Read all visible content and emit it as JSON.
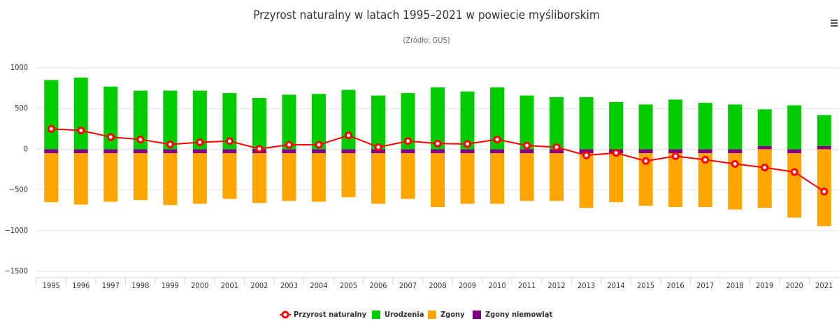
{
  "chart_data": {
    "type": "bar",
    "title": "Przyrost naturalny w latach 1995–2021 w powiecie myśliborskim",
    "subtitle": "(Źródło: GUS)",
    "categories": [
      "1995",
      "1996",
      "1997",
      "1998",
      "1999",
      "2000",
      "2001",
      "2002",
      "2003",
      "2004",
      "2005",
      "2006",
      "2007",
      "2008",
      "2009",
      "2010",
      "2011",
      "2012",
      "2013",
      "2014",
      "2015",
      "2016",
      "2017",
      "2018",
      "2019",
      "2020",
      "2021"
    ],
    "series": [
      {
        "name": "Przyrost naturalny",
        "type": "line",
        "color": "#ff0000",
        "values": [
          250,
          230,
          150,
          120,
          60,
          85,
          100,
          5,
          55,
          55,
          170,
          25,
          100,
          70,
          65,
          120,
          45,
          25,
          -75,
          -45,
          -145,
          -85,
          -130,
          -180,
          -225,
          -280,
          -520
        ]
      },
      {
        "name": "Urodzenia",
        "color": "#00cc00",
        "values": [
          850,
          880,
          770,
          720,
          720,
          720,
          690,
          630,
          670,
          680,
          730,
          660,
          690,
          760,
          710,
          760,
          660,
          640,
          640,
          580,
          550,
          610,
          570,
          550,
          450,
          540,
          380
        ]
      },
      {
        "name": "Zgony",
        "color": "#ffa500",
        "values": [
          -600,
          -630,
          -595,
          -575,
          -635,
          -620,
          -560,
          -610,
          -585,
          -595,
          -540,
          -620,
          -560,
          -660,
          -620,
          -620,
          -585,
          -585,
          -670,
          -600,
          -645,
          -660,
          -660,
          -690,
          -720,
          -790,
          -945
        ]
      },
      {
        "name": "Zgony niemowląt",
        "color": "#800080",
        "values": [
          -50,
          -50,
          -50,
          -50,
          -50,
          -50,
          -50,
          -50,
          -50,
          -50,
          -50,
          -50,
          -50,
          -50,
          -50,
          -50,
          -50,
          -50,
          -50,
          -50,
          -50,
          -50,
          -50,
          -50,
          40,
          -50,
          40
        ]
      }
    ],
    "ylim": [
      -1500,
      1000
    ],
    "yticks": [
      {
        "value": -1500,
        "label": "−1500"
      },
      {
        "value": -1000,
        "label": "−1000"
      },
      {
        "value": -500,
        "label": "−500"
      },
      0,
      500,
      1000
    ],
    "grid": true,
    "legend": "bottom"
  }
}
